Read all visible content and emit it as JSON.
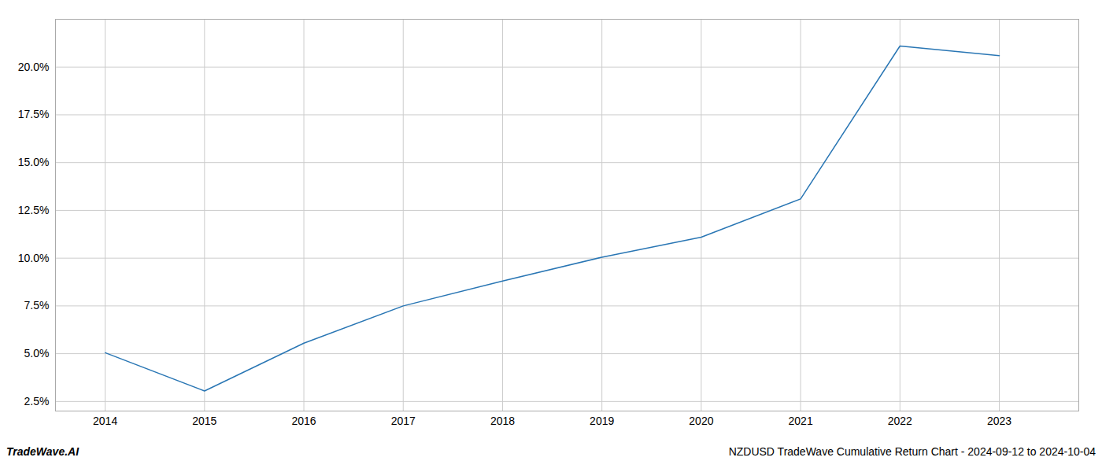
{
  "chart_data": {
    "type": "line",
    "x": [
      2014,
      2015,
      2016,
      2017,
      2018,
      2019,
      2020,
      2021,
      2022,
      2023
    ],
    "values": [
      5.05,
      3.05,
      5.55,
      7.5,
      8.8,
      10.05,
      11.1,
      13.1,
      21.1,
      20.6
    ],
    "color": "#2976b4",
    "xlim": [
      2013.5,
      2023.8
    ],
    "ylim": [
      2.0,
      22.5
    ],
    "xticks": [
      2014,
      2015,
      2016,
      2017,
      2018,
      2019,
      2020,
      2021,
      2022,
      2023
    ],
    "yticks": [
      {
        "value": 2.5,
        "label": "2.5%"
      },
      {
        "value": 5.0,
        "label": "5.0%"
      },
      {
        "value": 7.5,
        "label": "7.5%"
      },
      {
        "value": 10.0,
        "label": "10.0%"
      },
      {
        "value": 12.5,
        "label": "12.5%"
      },
      {
        "value": 15.0,
        "label": "15.0%"
      },
      {
        "value": 17.5,
        "label": "17.5%"
      },
      {
        "value": 20.0,
        "label": "20.0%"
      }
    ],
    "grid": true,
    "annotations": [
      "TradeWave.AI",
      "NZDUSD TradeWave Cumulative Return Chart - 2024-09-12 to 2024-10-04"
    ]
  }
}
